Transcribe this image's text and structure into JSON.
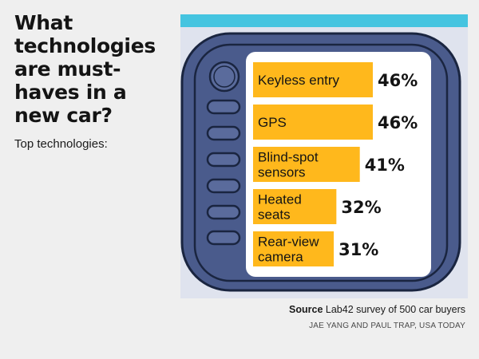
{
  "headline": "What technologies are must-haves in a new car?",
  "subhead": "Top technologies:",
  "chart_data": {
    "type": "bar",
    "orientation": "horizontal",
    "title": "What technologies are must-haves in a new car?",
    "subtitle": "Top technologies:",
    "categories": [
      [
        "Keyless entry"
      ],
      [
        "GPS"
      ],
      [
        "Blind-spot",
        "sensors"
      ],
      [
        "Heated",
        "seats"
      ],
      [
        "Rear-view",
        "camera"
      ]
    ],
    "values": [
      46,
      46,
      41,
      32,
      31
    ],
    "value_labels": [
      "46%",
      "46%",
      "41%",
      "32%",
      "31%"
    ],
    "unit": "%",
    "xlim": [
      0,
      46
    ],
    "grid": false,
    "legend": "none"
  },
  "colors": {
    "bar": "#ffb81c",
    "screen_bg": "#ffffff",
    "bezel": "#4a5b8c",
    "bezel_outline": "#1a2540",
    "panel_top": "#45c4e0",
    "panel_bg": "#dfe3ee",
    "text": "#141414"
  },
  "footer": {
    "source_label": "Source",
    "source_text": " Lab42 survey of 500 car buyers",
    "credit": "JAE YANG AND PAUL TRAP, USA TODAY"
  }
}
